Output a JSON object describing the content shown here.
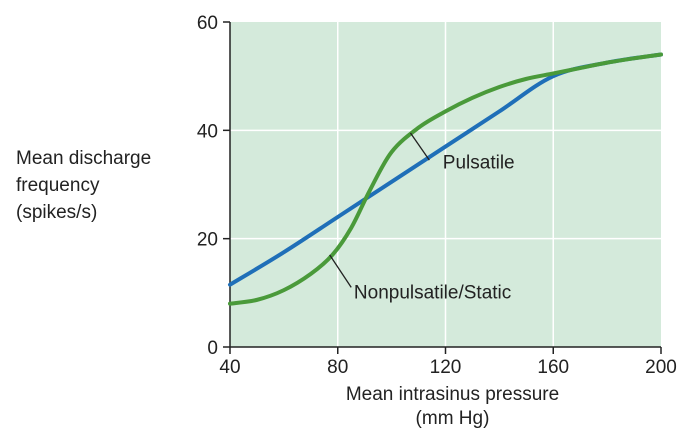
{
  "chart_data": {
    "type": "line",
    "xlabel_lines": [
      "Mean intrasinus pressure",
      "(mm Hg)"
    ],
    "ylabel_lines": [
      "Mean discharge",
      "frequency",
      "(spikes/s)"
    ],
    "xlim": [
      40,
      200
    ],
    "ylim": [
      0,
      60
    ],
    "xticks": [
      40,
      80,
      120,
      160,
      200
    ],
    "yticks": [
      0,
      20,
      40,
      60
    ],
    "grid": true,
    "plot_background": "#d4eadb",
    "grid_color": "#ffffff",
    "series": [
      {
        "name": "Pulsatile",
        "color": "#1f6fb8",
        "x": [
          40,
          60,
          80,
          100,
          120,
          140,
          160,
          180,
          200
        ],
        "y": [
          11.5,
          17.5,
          24,
          30.5,
          37,
          43.5,
          50,
          52.5,
          54
        ]
      },
      {
        "name": "Nonpulsatile/Static",
        "color": "#4a9a3a",
        "x": [
          40,
          50,
          60,
          70,
          78,
          85,
          92,
          100,
          110,
          120,
          130,
          140,
          150,
          160,
          170,
          180,
          190,
          200
        ],
        "y": [
          8,
          8.7,
          10.5,
          13.5,
          17,
          22,
          29,
          36,
          40.5,
          43.5,
          46,
          48,
          49.5,
          50.5,
          51.5,
          52.5,
          53.3,
          54
        ]
      }
    ],
    "annotations": [
      {
        "text": "Pulsatile",
        "series": 0,
        "text_x": 119,
        "text_y": 33,
        "arrow_from": [
          114,
          34.5
        ],
        "arrow_to": [
          107,
          39.5
        ]
      },
      {
        "text": "Nonpulsatile/Static",
        "series": 1,
        "text_x": 86,
        "text_y": 9,
        "arrow_from": [
          85,
          11
        ],
        "arrow_to": [
          77,
          17
        ]
      }
    ]
  }
}
